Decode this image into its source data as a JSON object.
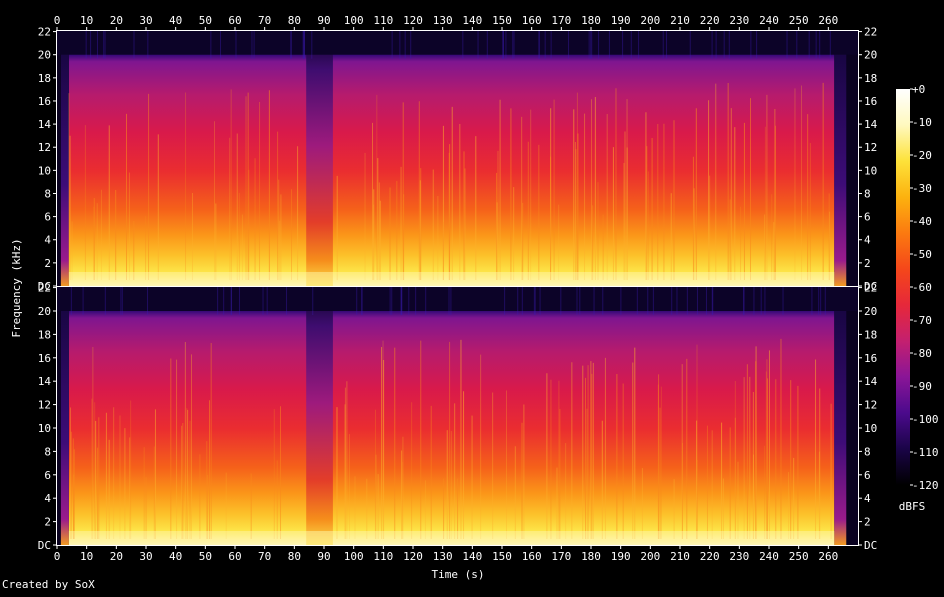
{
  "credit": "Created by SoX",
  "chart_data": {
    "type": "heatmap",
    "title": "",
    "xlabel": "Time (s)",
    "ylabel": "Frequency (kHz)",
    "xlim": [
      0,
      270
    ],
    "ylim": [
      0,
      22.05
    ],
    "x_ticks": [
      0,
      10,
      20,
      30,
      40,
      50,
      60,
      70,
      80,
      90,
      100,
      110,
      120,
      130,
      140,
      150,
      160,
      170,
      180,
      190,
      200,
      210,
      220,
      230,
      240,
      250,
      260
    ],
    "y_ticks": [
      {
        "value": 0,
        "label": "DC"
      },
      {
        "value": 2,
        "label": "2"
      },
      {
        "value": 4,
        "label": "4"
      },
      {
        "value": 6,
        "label": "6"
      },
      {
        "value": 8,
        "label": "8"
      },
      {
        "value": 10,
        "label": "10"
      },
      {
        "value": 12,
        "label": "12"
      },
      {
        "value": 14,
        "label": "14"
      },
      {
        "value": 16,
        "label": "16"
      },
      {
        "value": 18,
        "label": "18"
      },
      {
        "value": 20,
        "label": "20"
      },
      {
        "value": 22,
        "label": "22"
      }
    ],
    "channels": 2,
    "signal_span_s": [
      4,
      262
    ],
    "gap_span_s": [
      84,
      93
    ],
    "lowpass_cutoff_khz": 20,
    "colorbar": {
      "unit": "dBFS",
      "range": [
        -120,
        0
      ],
      "ticks": [
        "+0",
        "-10",
        "-20",
        "-30",
        "-40",
        "-50",
        "-60",
        "-70",
        "-80",
        "-90",
        "-100",
        "-110",
        "-120"
      ],
      "colors": [
        "#000000",
        "#1a0447",
        "#4b0a8c",
        "#8a1597",
        "#c4206f",
        "#e6283a",
        "#f5471a",
        "#fb7a10",
        "#fcb20f",
        "#fde23a",
        "#fff9bf",
        "#ffffff"
      ]
    }
  }
}
